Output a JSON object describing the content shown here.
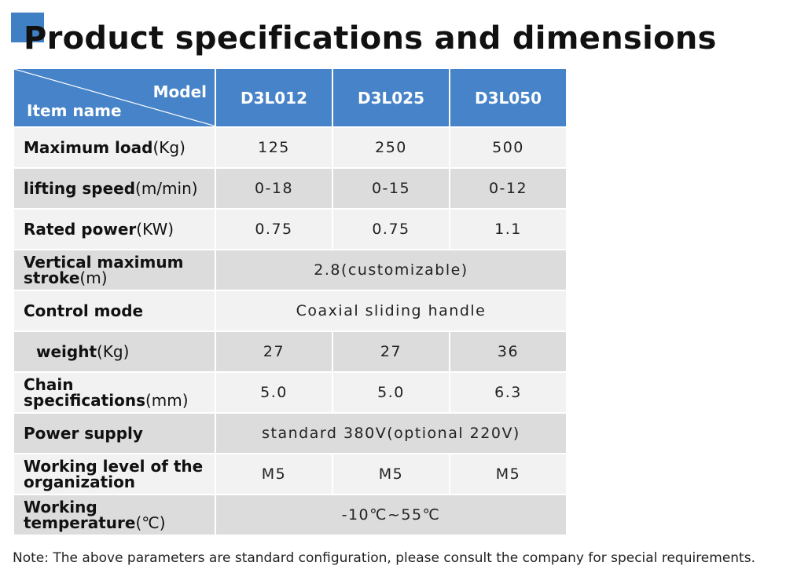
{
  "title": "Product specifications and dimensions",
  "header": {
    "model_label": "Model",
    "item_label": "Item name",
    "models": [
      "D3L012",
      "D3L025",
      "D3L050"
    ]
  },
  "rows": [
    {
      "name": "Maximum load",
      "unit": "(Kg)",
      "values": [
        "125",
        "250",
        "500"
      ]
    },
    {
      "name": "lifting speed",
      "unit": "(m/min)",
      "values": [
        "0-18",
        "0-15",
        "0-12"
      ]
    },
    {
      "name": "Rated power",
      "unit": "(KW)",
      "values": [
        "0.75",
        "0.75",
        "1.1"
      ]
    },
    {
      "name": "Vertical maximum stroke",
      "unit": "(m)",
      "value": "2.8(customizable)"
    },
    {
      "name": "Control mode",
      "unit": "",
      "value": "Coaxial sliding handle"
    },
    {
      "name": "weight",
      "unit": "(Kg)",
      "values": [
        "27",
        "27",
        "36"
      ]
    },
    {
      "name": "Chain specifications",
      "unit": "(mm)",
      "values": [
        "5.0",
        "5.0",
        "6.3"
      ]
    },
    {
      "name": "Power supply",
      "unit": "",
      "value": "standard 380V(optional 220V)"
    },
    {
      "name": "Working level of the organization",
      "unit": "",
      "values": [
        "M5",
        "M5",
        "M5"
      ]
    },
    {
      "name": "Working temperature",
      "unit": "(℃)",
      "value": "-10℃~55℃"
    }
  ],
  "note": "Note: The above parameters are standard configuration, please consult the company for special requirements.",
  "colors": {
    "accent": "#3f7fc4",
    "header_bg": "#4683c8",
    "row_light": "#f2f2f2",
    "row_dark": "#dcdcdc"
  }
}
